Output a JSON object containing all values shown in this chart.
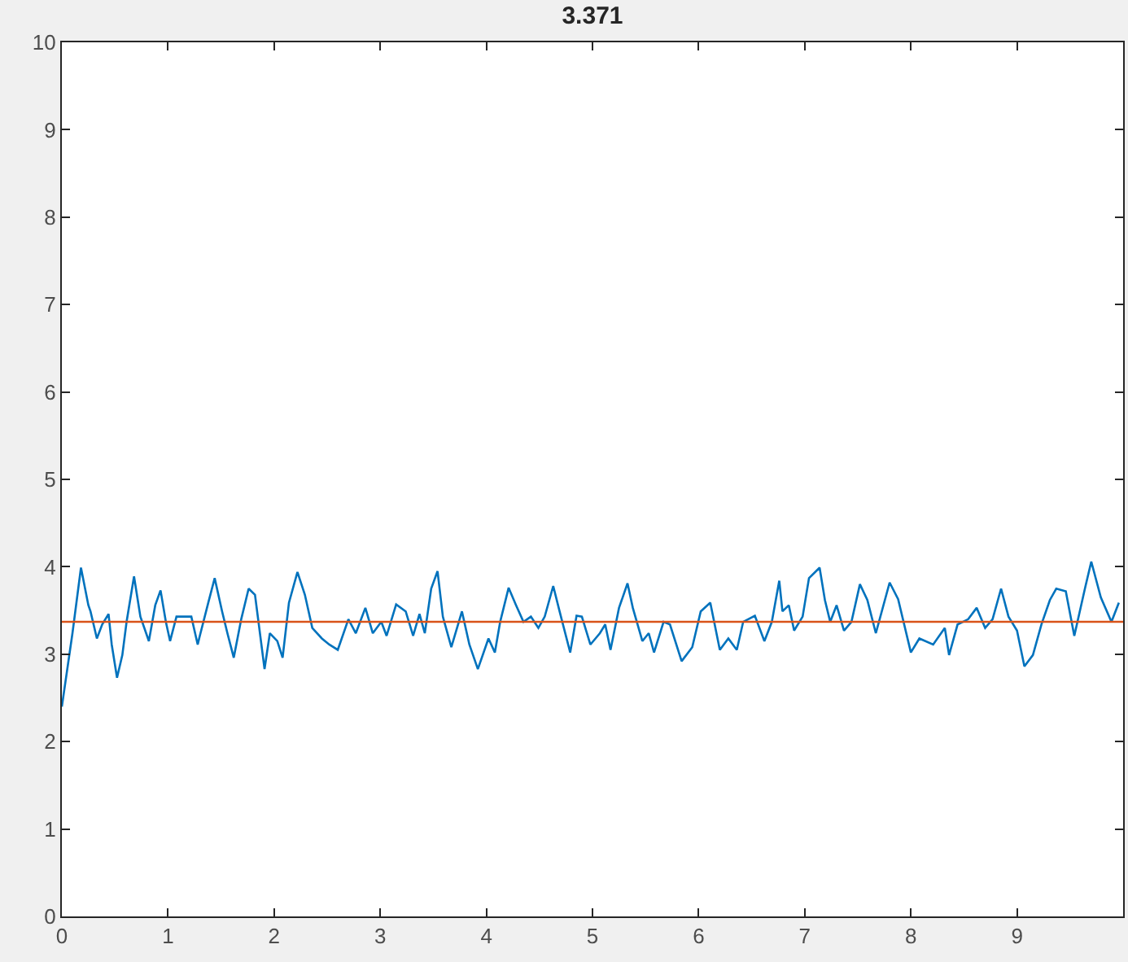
{
  "chart_data": {
    "type": "line",
    "title": "3.371",
    "xlim": [
      0,
      10
    ],
    "xticks": [
      0,
      1,
      2,
      3,
      4,
      5,
      6,
      7,
      8,
      9
    ],
    "ylim": [
      0,
      10
    ],
    "yticks": [
      0,
      1,
      2,
      3,
      4,
      5,
      6,
      7,
      8,
      9,
      10
    ],
    "grid": false,
    "marker": "none",
    "line_style": "solid",
    "ref_lines": [
      {
        "axis": "y",
        "value": 3.371,
        "color": "#d95319",
        "line_style": "solid"
      }
    ],
    "series": [
      {
        "color": "#0072bd",
        "x": [
          0,
          0.1,
          0.18,
          0.25,
          0.27,
          0.33,
          0.38,
          0.44,
          0.47,
          0.52,
          0.57,
          0.61,
          0.68,
          0.74,
          0.82,
          0.88,
          0.93,
          0.98,
          1.02,
          1.08,
          1.22,
          1.28,
          1.3,
          1.38,
          1.44,
          1.51,
          1.56,
          1.62,
          1.69,
          1.76,
          1.82,
          1.91,
          1.96,
          2.03,
          2.08,
          2.14,
          2.22,
          2.29,
          2.36,
          2.45,
          2.52,
          2.6,
          2.7,
          2.77,
          2.86,
          2.93,
          3.01,
          3.06,
          3.15,
          3.24,
          3.31,
          3.37,
          3.42,
          3.48,
          3.54,
          3.59,
          3.67,
          3.77,
          3.84,
          3.92,
          4.02,
          4.08,
          4.13,
          4.21,
          4.28,
          4.35,
          4.42,
          4.49,
          4.55,
          4.63,
          4.69,
          4.79,
          4.85,
          4.9,
          4.98,
          5.07,
          5.12,
          5.17,
          5.25,
          5.33,
          5.38,
          5.47,
          5.53,
          5.58,
          5.67,
          5.73,
          5.84,
          5.94,
          6.02,
          6.11,
          6.2,
          6.28,
          6.36,
          6.42,
          6.53,
          6.62,
          6.69,
          6.76,
          6.79,
          6.85,
          6.9,
          6.98,
          7.04,
          7.14,
          7.19,
          7.24,
          7.3,
          7.37,
          7.44,
          7.52,
          7.59,
          7.67,
          7.8,
          7.88,
          8.0,
          8.08,
          8.21,
          8.32,
          8.36,
          8.44,
          8.54,
          8.62,
          8.7,
          8.77,
          8.85,
          8.92,
          9.0,
          9.07,
          9.15,
          9.23,
          9.31,
          9.37,
          9.46,
          9.54,
          9.64,
          9.7,
          9.79,
          9.89,
          9.96
        ],
        "values": [
          2.4,
          3.24,
          3.99,
          3.56,
          3.49,
          3.18,
          3.34,
          3.46,
          3.11,
          2.73,
          2.99,
          3.37,
          3.89,
          3.43,
          3.15,
          3.56,
          3.73,
          3.37,
          3.15,
          3.43,
          3.43,
          3.11,
          3.21,
          3.59,
          3.87,
          3.49,
          3.24,
          2.96,
          3.4,
          3.75,
          3.68,
          2.83,
          3.24,
          3.15,
          2.96,
          3.59,
          3.94,
          3.68,
          3.3,
          3.18,
          3.11,
          3.05,
          3.4,
          3.24,
          3.53,
          3.24,
          3.37,
          3.21,
          3.57,
          3.49,
          3.21,
          3.46,
          3.24,
          3.75,
          3.95,
          3.43,
          3.08,
          3.49,
          3.11,
          2.83,
          3.18,
          3.02,
          3.37,
          3.76,
          3.56,
          3.37,
          3.43,
          3.3,
          3.43,
          3.78,
          3.49,
          3.02,
          3.44,
          3.43,
          3.11,
          3.24,
          3.34,
          3.05,
          3.53,
          3.81,
          3.53,
          3.15,
          3.24,
          3.02,
          3.37,
          3.34,
          2.92,
          3.08,
          3.49,
          3.59,
          3.05,
          3.18,
          3.05,
          3.37,
          3.44,
          3.15,
          3.37,
          3.84,
          3.49,
          3.56,
          3.27,
          3.43,
          3.87,
          3.99,
          3.62,
          3.37,
          3.56,
          3.27,
          3.37,
          3.8,
          3.62,
          3.24,
          3.82,
          3.63,
          3.02,
          3.18,
          3.11,
          3.3,
          2.99,
          3.34,
          3.4,
          3.53,
          3.3,
          3.4,
          3.75,
          3.43,
          3.27,
          2.86,
          2.99,
          3.34,
          3.62,
          3.75,
          3.72,
          3.21,
          3.75,
          4.06,
          3.65,
          3.37,
          3.59
        ]
      }
    ]
  }
}
